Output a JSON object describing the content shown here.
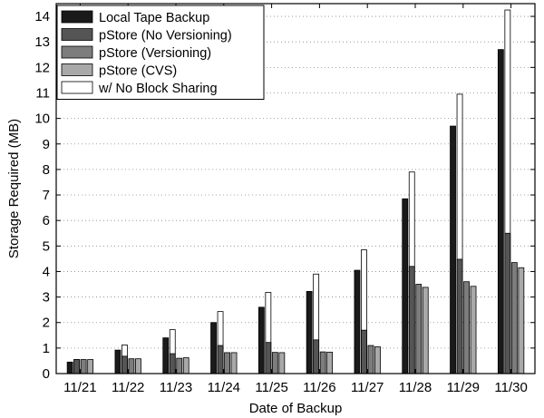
{
  "chart_data": {
    "type": "bar",
    "xlabel": "Date of Backup",
    "ylabel": "Storage Required (MB)",
    "ylim": [
      0,
      14.5
    ],
    "yticks": [
      0,
      1,
      2,
      3,
      4,
      5,
      6,
      7,
      8,
      9,
      10,
      11,
      12,
      13,
      14
    ],
    "grid": "horizontal dotted",
    "legend_position": "top-left",
    "categories": [
      "11/21",
      "11/22",
      "11/23",
      "11/24",
      "11/25",
      "11/26",
      "11/27",
      "11/28",
      "11/29",
      "11/30"
    ],
    "series": [
      {
        "name": "Local Tape Backup",
        "color": "#1a1a1a",
        "values": [
          0.45,
          0.92,
          1.4,
          2.0,
          2.6,
          3.22,
          4.05,
          6.85,
          9.7,
          12.7
        ]
      },
      {
        "name": "pStore (No Versioning)",
        "color": "#555555",
        "values": [
          0.55,
          0.68,
          0.78,
          1.1,
          1.22,
          1.32,
          1.7,
          4.2,
          4.48,
          5.5
        ],
        "no_block_sharing": [
          0.55,
          1.12,
          1.72,
          2.43,
          3.18,
          3.9,
          4.85,
          7.9,
          10.95,
          14.25
        ]
      },
      {
        "name": "pStore (Versioning)",
        "color": "#7d7d7d",
        "values": [
          0.55,
          0.58,
          0.6,
          0.82,
          0.83,
          0.85,
          1.1,
          3.5,
          3.6,
          4.35
        ]
      },
      {
        "name": "pStore (CVS)",
        "color": "#a9a9a9",
        "values": [
          0.55,
          0.58,
          0.62,
          0.82,
          0.82,
          0.84,
          1.05,
          3.38,
          3.42,
          4.15
        ]
      }
    ],
    "overlay_series": {
      "name": "w/ No Block Sharing",
      "color": "#ffffff"
    }
  }
}
